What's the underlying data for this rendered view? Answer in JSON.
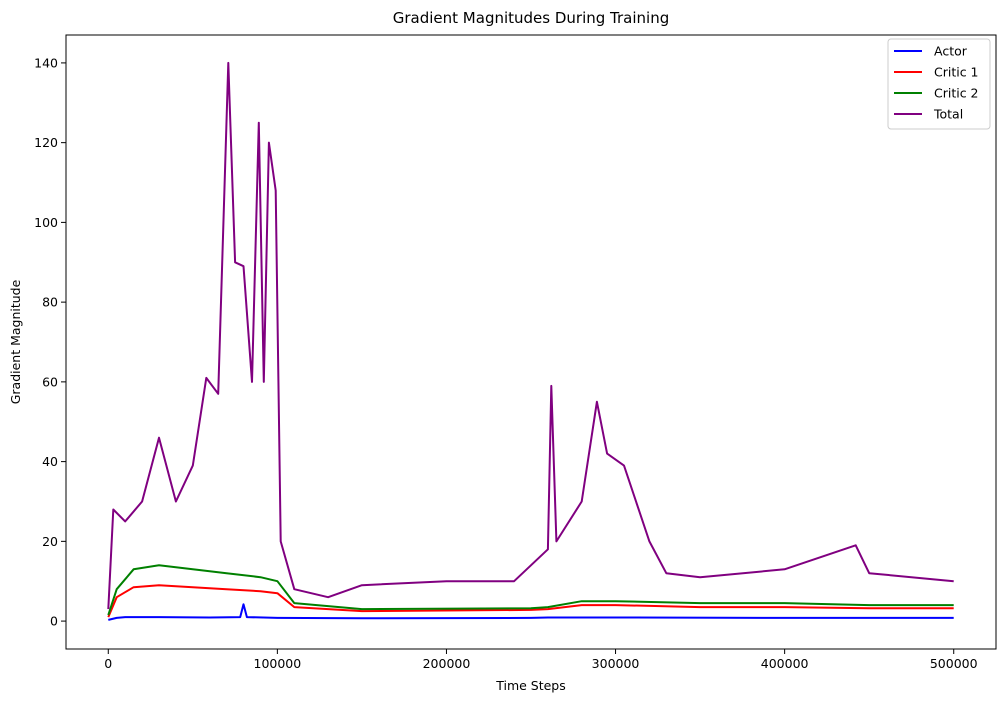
{
  "chart_data": {
    "type": "line",
    "title": "Gradient Magnitudes During Training",
    "xlabel": "Time Steps",
    "ylabel": "Gradient Magnitude",
    "xlim": [
      -25000,
      525000
    ],
    "ylim": [
      -7,
      147
    ],
    "x_ticks": [
      0,
      100000,
      200000,
      300000,
      400000,
      500000
    ],
    "y_ticks": [
      0,
      20,
      40,
      60,
      80,
      100,
      120,
      140
    ],
    "grid": false,
    "legend_position": "top-right",
    "series": [
      {
        "name": "Actor",
        "color": "#0000ff",
        "x": [
          0,
          5000,
          10000,
          30000,
          60000,
          78000,
          80000,
          82000,
          100000,
          150000,
          250000,
          260000,
          300000,
          400000,
          500000
        ],
        "y": [
          0.3,
          0.8,
          1.0,
          1.0,
          0.9,
          1.0,
          4.2,
          1.0,
          0.8,
          0.7,
          0.8,
          0.9,
          0.9,
          0.8,
          0.8
        ]
      },
      {
        "name": "Critic 1",
        "color": "#ff0000",
        "x": [
          0,
          5000,
          15000,
          30000,
          50000,
          70000,
          90000,
          100000,
          110000,
          150000,
          250000,
          260000,
          280000,
          300000,
          350000,
          400000,
          450000,
          500000
        ],
        "y": [
          1.0,
          6.0,
          8.5,
          9.0,
          8.5,
          8.0,
          7.5,
          7.0,
          3.5,
          2.5,
          2.8,
          3.0,
          4.0,
          4.0,
          3.5,
          3.5,
          3.2,
          3.2
        ]
      },
      {
        "name": "Critic 2",
        "color": "#008000",
        "x": [
          0,
          5000,
          15000,
          30000,
          50000,
          70000,
          90000,
          100000,
          110000,
          150000,
          250000,
          260000,
          280000,
          300000,
          350000,
          400000,
          450000,
          500000
        ],
        "y": [
          1.5,
          8.0,
          13.0,
          14.0,
          13.0,
          12.0,
          11.0,
          10.0,
          4.5,
          3.0,
          3.2,
          3.5,
          5.0,
          5.0,
          4.5,
          4.5,
          4.0,
          4.0
        ]
      },
      {
        "name": "Total",
        "color": "#800080",
        "x": [
          0,
          3000,
          10000,
          20000,
          30000,
          40000,
          50000,
          58000,
          65000,
          71000,
          75000,
          80000,
          85000,
          89000,
          92000,
          95000,
          99000,
          102000,
          110000,
          130000,
          150000,
          200000,
          240000,
          260000,
          262000,
          265000,
          280000,
          289000,
          295000,
          305000,
          320000,
          330000,
          350000,
          400000,
          442000,
          450000,
          500000
        ],
        "y": [
          3,
          28,
          25,
          30,
          46,
          30,
          39,
          61,
          57,
          140,
          90,
          89,
          60,
          125,
          60,
          120,
          108,
          20,
          8,
          6,
          9,
          10,
          10,
          18,
          59,
          20,
          30,
          55,
          42,
          39,
          20,
          12,
          11,
          13,
          19,
          12,
          10
        ]
      }
    ]
  }
}
